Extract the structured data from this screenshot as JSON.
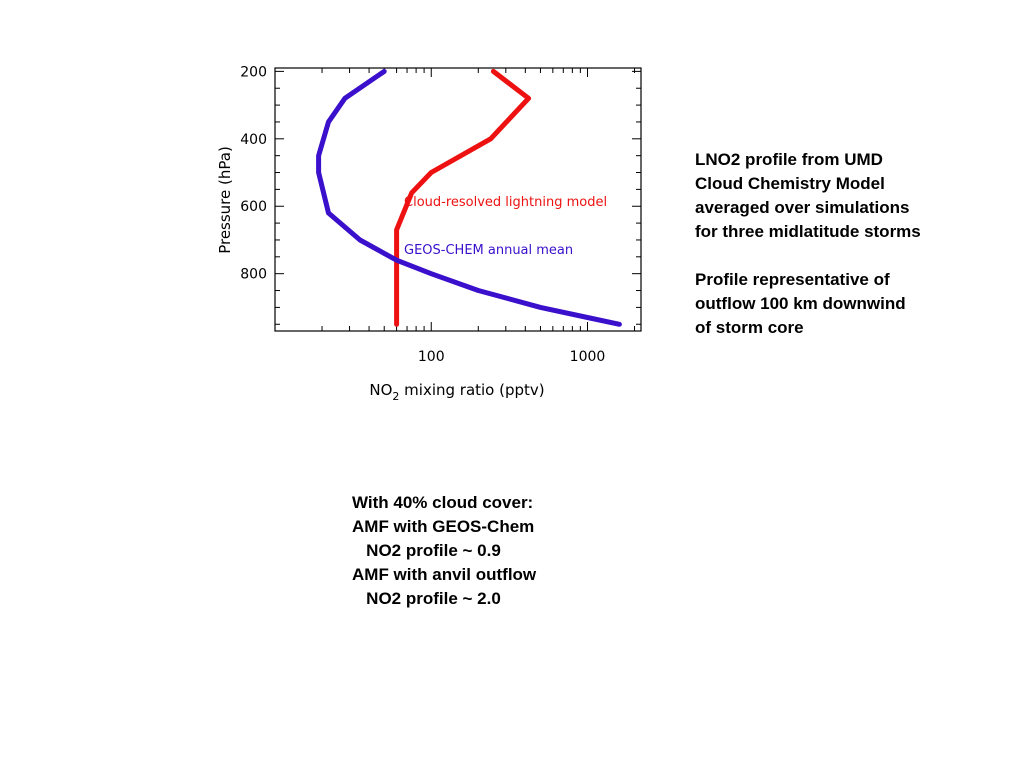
{
  "chart_data": {
    "type": "line",
    "title": "",
    "xlabel": "NO",
    "xlabel_subscript": "2",
    "xlabel_suffix": " mixing ratio (pptv)",
    "ylabel": "Pressure (hPa)",
    "x_scale": "log",
    "xlim": [
      10,
      2200
    ],
    "ylim": [
      970,
      190
    ],
    "y_inverted": true,
    "x_ticks": [
      {
        "value": 100,
        "label": "100"
      },
      {
        "value": 1000,
        "label": "1000"
      }
    ],
    "y_ticks": [
      {
        "value": 200,
        "label": "200"
      },
      {
        "value": 400,
        "label": "400"
      },
      {
        "value": 600,
        "label": "600"
      },
      {
        "value": 800,
        "label": "800"
      }
    ],
    "grid": false,
    "legend_position": "center-right",
    "series": [
      {
        "name": "Cloud-resolved lightning model",
        "color": "#ee1111",
        "points": [
          {
            "x": 250,
            "y": 200
          },
          {
            "x": 420,
            "y": 280
          },
          {
            "x": 240,
            "y": 400
          },
          {
            "x": 100,
            "y": 500
          },
          {
            "x": 75,
            "y": 560
          },
          {
            "x": 60,
            "y": 670
          },
          {
            "x": 60,
            "y": 950
          }
        ]
      },
      {
        "name": "GEOS-CHEM annual mean",
        "color": "#3a10cc",
        "points": [
          {
            "x": 50,
            "y": 200
          },
          {
            "x": 28,
            "y": 280
          },
          {
            "x": 22,
            "y": 350
          },
          {
            "x": 19,
            "y": 450
          },
          {
            "x": 19,
            "y": 500
          },
          {
            "x": 22,
            "y": 620
          },
          {
            "x": 35,
            "y": 700
          },
          {
            "x": 60,
            "y": 760
          },
          {
            "x": 100,
            "y": 800
          },
          {
            "x": 200,
            "y": 850
          },
          {
            "x": 500,
            "y": 900
          },
          {
            "x": 1000,
            "y": 930
          },
          {
            "x": 1600,
            "y": 950
          }
        ]
      }
    ]
  },
  "notes": {
    "right": "LNO2 profile from UMD\nCloud Chemistry Model\naveraged over simulations\nfor three midlatitude storms\n\nProfile representative of\noutflow 100 km downwind\nof storm core",
    "bottom": "With 40% cloud cover:\nAMF with GEOS-Chem\n   NO2 profile ~ 0.9\nAMF with anvil outflow\n   NO2 profile ~ 2.0"
  }
}
